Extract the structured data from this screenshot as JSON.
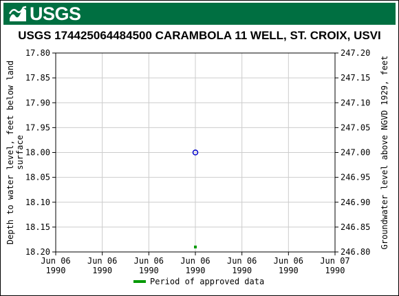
{
  "header": {
    "logo_text": "USGS",
    "logo_icon": "usgs-wave-icon",
    "banner_color": "#006f41"
  },
  "chart_data": {
    "type": "scatter",
    "title": "USGS 174425064484500 CARAMBOLA 11 WELL, ST. CROIX, USVI",
    "ylabel_left": "Depth to water level, feet below land surface",
    "ylabel_left_lines": [
      "Depth to water level, feet below land",
      "surface"
    ],
    "ylabel_right": "Groundwater level above NGVD 1929, feet",
    "y_left_ticks": [
      "17.80",
      "17.85",
      "17.90",
      "17.95",
      "18.00",
      "18.05",
      "18.10",
      "18.15",
      "18.20"
    ],
    "y_right_ticks": [
      "247.20",
      "247.15",
      "247.10",
      "247.05",
      "247.00",
      "246.95",
      "246.90",
      "246.85",
      "246.80"
    ],
    "ylim_left": [
      17.8,
      18.2
    ],
    "y_left_inverted": true,
    "x_ticks": [
      {
        "line1": "Jun 06",
        "line2": "1990"
      },
      {
        "line1": "Jun 06",
        "line2": "1990"
      },
      {
        "line1": "Jun 06",
        "line2": "1990"
      },
      {
        "line1": "Jun 06",
        "line2": "1990"
      },
      {
        "line1": "Jun 06",
        "line2": "1990"
      },
      {
        "line1": "Jun 06",
        "line2": "1990"
      },
      {
        "line1": "Jun 07",
        "line2": "1990"
      }
    ],
    "grid": true,
    "points": [
      {
        "x_tick_index": 3,
        "y": 18.0,
        "marker": "circle",
        "color": "#0000cc"
      }
    ],
    "approved_period_marks": [
      {
        "x_tick_index": 3,
        "y": 18.19,
        "color": "#009900"
      }
    ],
    "legend": {
      "placement": "bottom-center",
      "entries": [
        {
          "label": "Period of approved data",
          "color": "#009900"
        }
      ]
    }
  }
}
